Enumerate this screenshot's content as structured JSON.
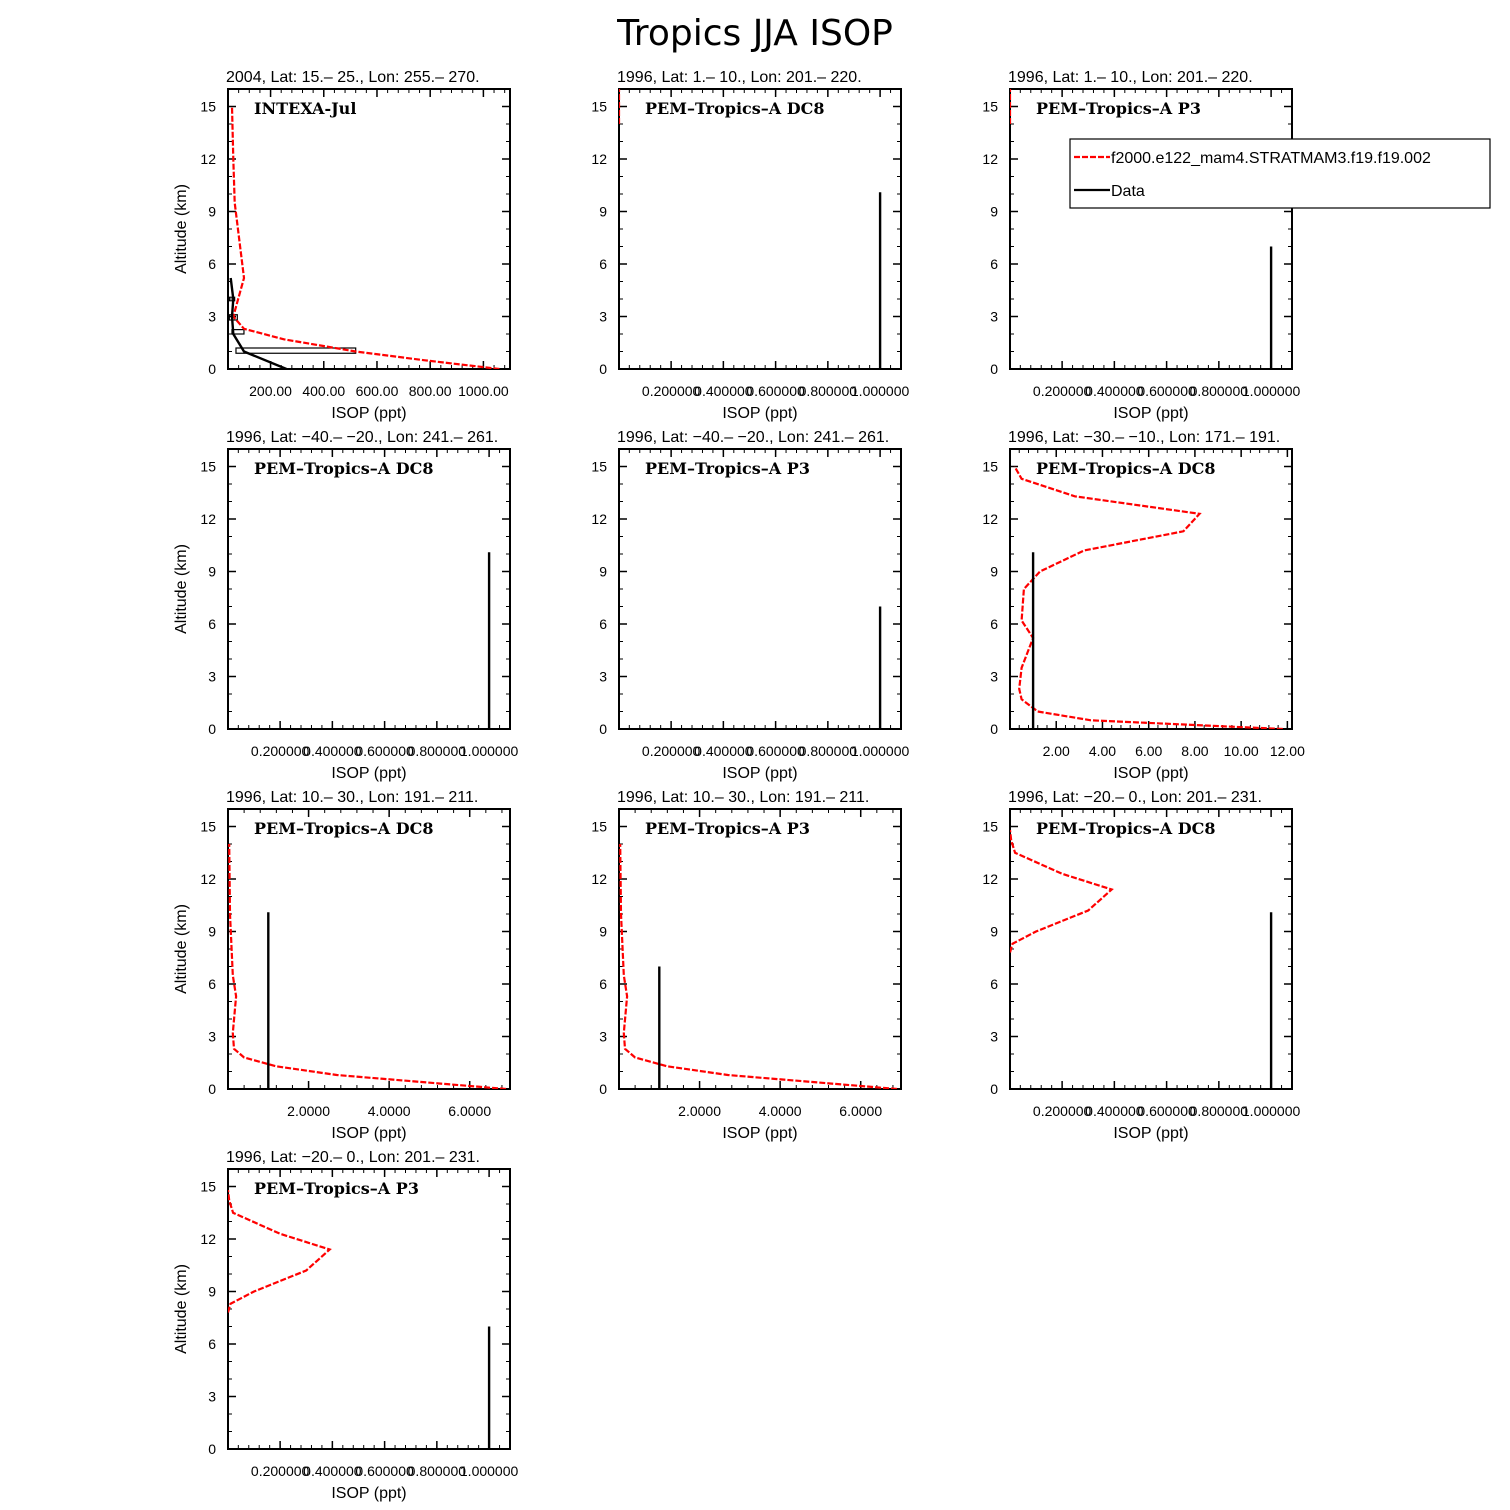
{
  "main_title": "Tropics JJA ISOP",
  "legend": {
    "entries": [
      {
        "label": "f2000.e122_mam4.STRATMAM3.f19.f19.002",
        "color": "#ff0000",
        "dashed": true
      },
      {
        "label": "Data",
        "color": "#000000",
        "dashed": false
      }
    ]
  },
  "colors": {
    "model": "#ff0000",
    "data": "#000000"
  },
  "chart_data": [
    {
      "type": "line",
      "title": "2004, Lat: 15.– 25., Lon: 255.– 270.",
      "campaign": "INTEXA-Jul",
      "xlabel": "ISOP (ppt)",
      "ylabel": "Altitude (km)",
      "xlim": [
        40,
        1100
      ],
      "ylim": [
        0,
        16
      ],
      "xticks": [
        200,
        400,
        600,
        800,
        1000
      ],
      "xtick_labels": [
        "200.00",
        "400.00",
        "600.00",
        "800.00",
        "1000.00"
      ],
      "yticks": [
        0,
        3,
        6,
        9,
        12,
        15
      ],
      "series": [
        {
          "name": "f2000.e122_mam4.STRATMAM3.f19.f19.002",
          "x": [
            1060,
            780,
            520,
            250,
            100,
            60,
            100,
            65,
            60,
            55
          ],
          "y": [
            0,
            0.5,
            1.0,
            1.7,
            2.3,
            3.0,
            5.2,
            9.5,
            12.0,
            15.0
          ]
        },
        {
          "name": "Data",
          "x": [
            260,
            100,
            60,
            55,
            60,
            50
          ],
          "y": [
            0,
            1.0,
            2.0,
            3.0,
            4.0,
            5.2
          ]
        }
      ],
      "boxes": [
        {
          "x0": 70,
          "x1": 520,
          "y0": 0.9,
          "y1": 1.2
        },
        {
          "x0": 55,
          "x1": 100,
          "y0": 2.0,
          "y1": 2.25
        },
        {
          "x0": 45,
          "x1": 75,
          "y0": 2.8,
          "y1": 3.1
        },
        {
          "x0": 45,
          "x1": 65,
          "y0": 3.9,
          "y1": 4.1
        }
      ]
    },
    {
      "type": "line",
      "title": "1996, Lat: 1.– 10., Lon: 201.– 220.",
      "campaign": "PEM–Tropics–A DC8",
      "xlabel": "ISOP (ppt)",
      "ylabel": "",
      "xlim": [
        0.0005,
        1.08
      ],
      "ylim": [
        0,
        16
      ],
      "xticks": [
        0.2,
        0.4,
        0.6,
        0.8,
        1.0
      ],
      "xtick_labels": [
        "0.200000",
        "0.400000",
        "0.600000",
        "0.800000",
        "1.000000"
      ],
      "yticks": [
        0,
        3,
        6,
        9,
        12,
        15
      ],
      "series": [
        {
          "name": "f2000.e122_mam4.STRATMAM3.f19.f19.002",
          "x": [
            0.0005,
            0.0005
          ],
          "y": [
            14.0,
            16.0
          ]
        },
        {
          "name": "Data",
          "x": [
            1.0,
            1.0
          ],
          "y": [
            0,
            10.1
          ]
        }
      ]
    },
    {
      "type": "line",
      "title": "1996, Lat: 1.– 10., Lon: 201.– 220.",
      "campaign": "PEM–Tropics–A P3",
      "xlabel": "ISOP (ppt)",
      "ylabel": "",
      "xlim": [
        0.0005,
        1.08
      ],
      "ylim": [
        0,
        16
      ],
      "xticks": [
        0.2,
        0.4,
        0.6,
        0.8,
        1.0
      ],
      "xtick_labels": [
        "0.200000",
        "0.400000",
        "0.600000",
        "0.800000",
        "1.000000"
      ],
      "yticks": [
        0,
        3,
        6,
        9,
        12,
        15
      ],
      "show_legend": true,
      "series": [
        {
          "name": "f2000.e122_mam4.STRATMAM3.f19.f19.002",
          "x": [
            0.0005,
            0.0005
          ],
          "y": [
            14.0,
            16.0
          ]
        },
        {
          "name": "Data",
          "x": [
            1.0,
            1.0
          ],
          "y": [
            0,
            7.0
          ]
        }
      ]
    },
    {
      "type": "line",
      "title": "1996, Lat: −40.– −20., Lon: 241.– 261.",
      "campaign": "PEM–Tropics–A DC8",
      "xlabel": "ISOP (ppt)",
      "ylabel": "Altitude (km)",
      "xlim": [
        0.0005,
        1.08
      ],
      "ylim": [
        0,
        16
      ],
      "xticks": [
        0.2,
        0.4,
        0.6,
        0.8,
        1.0
      ],
      "xtick_labels": [
        "0.200000",
        "0.400000",
        "0.600000",
        "0.800000",
        "1.000000"
      ],
      "yticks": [
        0,
        3,
        6,
        9,
        12,
        15
      ],
      "series": [
        {
          "name": "Data",
          "x": [
            1.0,
            1.0
          ],
          "y": [
            0,
            10.1
          ]
        }
      ]
    },
    {
      "type": "line",
      "title": "1996, Lat: −40.– −20., Lon: 241.– 261.",
      "campaign": "PEM–Tropics–A P3",
      "xlabel": "ISOP (ppt)",
      "ylabel": "",
      "xlim": [
        0.0005,
        1.08
      ],
      "ylim": [
        0,
        16
      ],
      "xticks": [
        0.2,
        0.4,
        0.6,
        0.8,
        1.0
      ],
      "xtick_labels": [
        "0.200000",
        "0.400000",
        "0.600000",
        "0.800000",
        "1.000000"
      ],
      "yticks": [
        0,
        3,
        6,
        9,
        12,
        15
      ],
      "series": [
        {
          "name": "Data",
          "x": [
            1.0,
            1.0
          ],
          "y": [
            0,
            7.0
          ]
        }
      ]
    },
    {
      "type": "line",
      "title": "1996, Lat: −30.– −10., Lon: 171.– 191.",
      "campaign": "PEM–Tropics–A DC8",
      "xlabel": "ISOP (ppt)",
      "ylabel": "",
      "xlim": [
        0.0,
        12.2
      ],
      "ylim": [
        0,
        16
      ],
      "xticks": [
        2,
        4,
        6,
        8,
        10,
        12
      ],
      "xtick_labels": [
        "2.00",
        "4.00",
        "6.00",
        "8.00",
        "10.00",
        "12.00"
      ],
      "yticks": [
        0,
        3,
        6,
        9,
        12,
        15
      ],
      "series": [
        {
          "name": "f2000.e122_mam4.STRATMAM3.f19.f19.002",
          "x": [
            11.8,
            3.5,
            1.2,
            0.5,
            0.4,
            0.5,
            1.0,
            0.5,
            0.6,
            1.3,
            3.2,
            7.5,
            8.2,
            2.8,
            0.5,
            0.2
          ],
          "y": [
            0,
            0.5,
            1.0,
            1.7,
            2.3,
            3.5,
            5.2,
            6.2,
            8.0,
            9.0,
            10.2,
            11.3,
            12.3,
            13.3,
            14.3,
            15.0
          ]
        },
        {
          "name": "Data",
          "x": [
            1.0,
            1.0
          ],
          "y": [
            0,
            10.1
          ]
        }
      ]
    },
    {
      "type": "line",
      "title": "1996, Lat: 10.– 30., Lon: 191.– 211.",
      "campaign": "PEM–Tropics–A DC8",
      "xlabel": "ISOP (ppt)",
      "ylabel": "Altitude (km)",
      "xlim": [
        0.0,
        7.0
      ],
      "ylim": [
        0,
        16
      ],
      "xticks": [
        2,
        4,
        6
      ],
      "xtick_labels": [
        "2.0000",
        "4.0000",
        "6.0000"
      ],
      "yticks": [
        0,
        3,
        6,
        9,
        12,
        15
      ],
      "series": [
        {
          "name": "f2000.e122_mam4.STRATMAM3.f19.f19.002",
          "x": [
            6.9,
            2.7,
            1.2,
            0.4,
            0.15,
            0.12,
            0.2,
            0.12,
            0.05,
            0.03
          ],
          "y": [
            0,
            0.8,
            1.3,
            1.8,
            2.3,
            3.2,
            5.3,
            6.5,
            10.0,
            14.0
          ]
        },
        {
          "name": "Data",
          "x": [
            1.0,
            1.0
          ],
          "y": [
            0,
            10.1
          ]
        }
      ]
    },
    {
      "type": "line",
      "title": "1996, Lat: 10.– 30., Lon: 191.– 211.",
      "campaign": "PEM–Tropics–A P3",
      "xlabel": "ISOP (ppt)",
      "ylabel": "",
      "xlim": [
        0.0,
        7.0
      ],
      "ylim": [
        0,
        16
      ],
      "xticks": [
        2,
        4,
        6
      ],
      "xtick_labels": [
        "2.0000",
        "4.0000",
        "6.0000"
      ],
      "yticks": [
        0,
        3,
        6,
        9,
        12,
        15
      ],
      "series": [
        {
          "name": "f2000.e122_mam4.STRATMAM3.f19.f19.002",
          "x": [
            6.9,
            2.7,
            1.2,
            0.4,
            0.15,
            0.12,
            0.2,
            0.12,
            0.05,
            0.03
          ],
          "y": [
            0,
            0.8,
            1.3,
            1.8,
            2.3,
            3.2,
            5.3,
            6.5,
            10.0,
            14.0
          ]
        },
        {
          "name": "Data",
          "x": [
            1.0,
            1.0
          ],
          "y": [
            0,
            7.0
          ]
        }
      ]
    },
    {
      "type": "line",
      "title": "1996, Lat: −20.– 0., Lon: 201.– 231.",
      "campaign": "PEM–Tropics–A DC8",
      "xlabel": "ISOP (ppt)",
      "ylabel": "",
      "xlim": [
        0.0005,
        1.08
      ],
      "ylim": [
        0,
        16
      ],
      "xticks": [
        0.2,
        0.4,
        0.6,
        0.8,
        1.0
      ],
      "xtick_labels": [
        "0.200000",
        "0.400000",
        "0.600000",
        "0.800000",
        "1.000000"
      ],
      "yticks": [
        0,
        3,
        6,
        9,
        12,
        15
      ],
      "series": [
        {
          "name": "f2000.e122_mam4.STRATMAM3.f19.f19.002",
          "x": [
            0.0005,
            0.01,
            0.1,
            0.3,
            0.39,
            0.2,
            0.02,
            0.005,
            0.0005
          ],
          "y": [
            7.8,
            8.3,
            9.0,
            10.2,
            11.4,
            12.3,
            13.5,
            14.2,
            14.8
          ]
        },
        {
          "name": "Data",
          "x": [
            1.0,
            1.0
          ],
          "y": [
            0,
            10.1
          ]
        }
      ]
    },
    {
      "type": "line",
      "title": "1996, Lat: −20.– 0., Lon: 201.– 231.",
      "campaign": "PEM–Tropics–A P3",
      "xlabel": "ISOP (ppt)",
      "ylabel": "Altitude (km)",
      "xlim": [
        0.0005,
        1.08
      ],
      "ylim": [
        0,
        16
      ],
      "xticks": [
        0.2,
        0.4,
        0.6,
        0.8,
        1.0
      ],
      "xtick_labels": [
        "0.200000",
        "0.400000",
        "0.600000",
        "0.800000",
        "1.000000"
      ],
      "yticks": [
        0,
        3,
        6,
        9,
        12,
        15
      ],
      "series": [
        {
          "name": "f2000.e122_mam4.STRATMAM3.f19.f19.002",
          "x": [
            0.0005,
            0.01,
            0.1,
            0.3,
            0.39,
            0.2,
            0.02,
            0.005,
            0.0005
          ],
          "y": [
            7.8,
            8.3,
            9.0,
            10.2,
            11.4,
            12.3,
            13.5,
            14.2,
            14.8
          ]
        },
        {
          "name": "Data",
          "x": [
            1.0,
            1.0
          ],
          "y": [
            0,
            7.0
          ]
        }
      ]
    }
  ]
}
